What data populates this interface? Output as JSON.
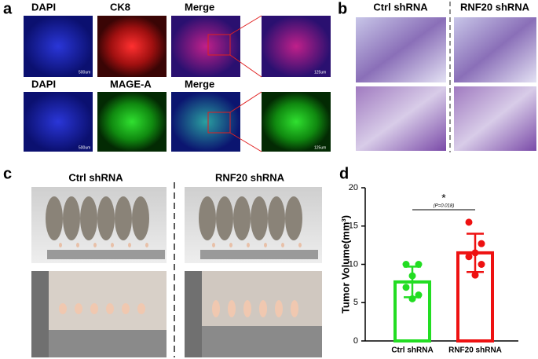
{
  "panel_labels": [
    "a",
    "b",
    "c",
    "d"
  ],
  "panel_a": {
    "row1": [
      "DAPI",
      "CK8",
      "Merge"
    ],
    "row2": [
      "DAPI",
      "MAGE-A",
      "Merge"
    ],
    "scale_bars": [
      "500um",
      "125um",
      "500um",
      "125um"
    ]
  },
  "panel_b": {
    "columns": [
      "Ctrl shRNA",
      "RNF20 shRNA"
    ]
  },
  "panel_c": {
    "columns": [
      "Ctrl shRNA",
      "RNF20 shRNA"
    ]
  },
  "chart_data": {
    "type": "bar",
    "y_label": "Tumor Volume(mm³)",
    "categories": [
      "Ctrl shRNA",
      "RNF20 shRNA"
    ],
    "values": [
      7.7,
      11.5
    ],
    "errors": [
      2.0,
      2.5
    ],
    "colors": [
      "#22dd22",
      "#ee1111"
    ],
    "points": [
      [
        10,
        10,
        8.5,
        7,
        6,
        5.5
      ],
      [
        15.5,
        12.7,
        11.5,
        11,
        10,
        8.6
      ]
    ],
    "annotation": "*",
    "p_value": "(P=0.018)",
    "ylim": [
      0,
      20
    ],
    "yticks": [
      0,
      5,
      10,
      15,
      20
    ]
  }
}
